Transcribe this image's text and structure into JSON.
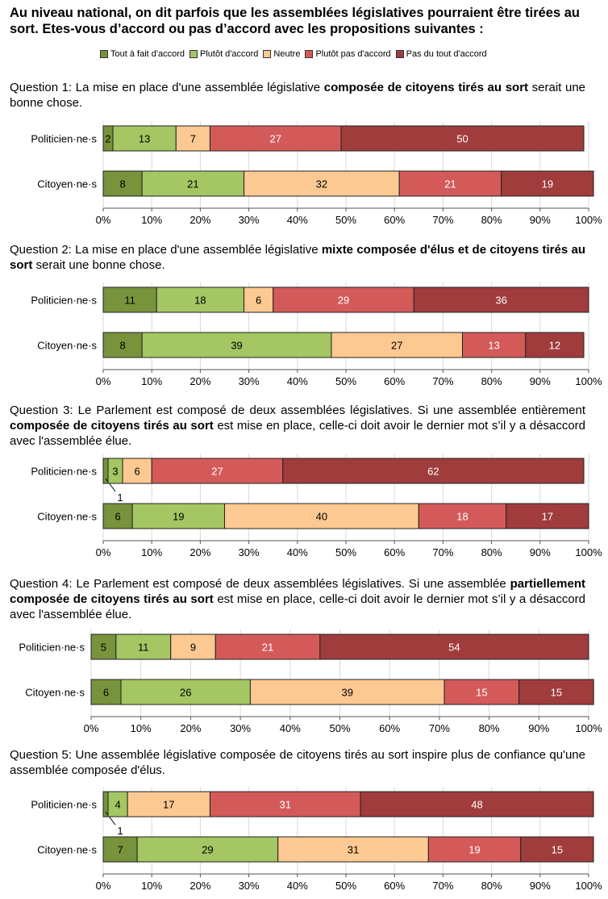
{
  "title": "Au niveau national, on dit parfois que les assemblées législatives pourraient être tirées au sort. Etes-vous d’accord ou pas d’accord avec les propositions suivantes :",
  "legend": [
    {
      "label": "Tout à fait d'accord",
      "color": "#77933c"
    },
    {
      "label": "Plutôt d'accord",
      "color": "#a4c663"
    },
    {
      "label": "Neutre",
      "color": "#fcc992"
    },
    {
      "label": "Plutôt pas d'accord",
      "color": "#d45a5a"
    },
    {
      "label": "Pas du tout d'accord",
      "color": "#a03c3c"
    }
  ],
  "questions": [
    {
      "pre": "Question 1: La mise en place d'une assemblée législative ",
      "bold": "composée de citoyens tirés au sort",
      "post": " serait une bonne chose."
    },
    {
      "pre": "Question 2: La mise en place d'une assemblée législative ",
      "bold": "mixte composée d'élus et de citoyens tirés au sort",
      "post": " serait une bonne chose."
    },
    {
      "pre": "Question 3: Le Parlement est composé de deux assemblées législatives. Si une assemblée entièrement ",
      "bold": "composée de citoyens tirés au sort",
      "post": " est mise en place, celle-ci doit avoir le dernier mot s’il y a désaccord avec l'assemblée élue."
    },
    {
      "pre": "Question 4: Le Parlement est composé de deux assemblées législatives. Si une assemblée ",
      "bold": "partiellement composée de citoyens tirés au sort",
      "post": " est mise en place, celle-ci doit avoir le dernier mot s’il y a désaccord avec l'assemblée élue."
    },
    {
      "pre": "Question 5: Une assemblée législative composée de citoyens tirés au sort inspire plus de confiance qu'une assemblée composée d'élus.",
      "bold": "",
      "post": ""
    }
  ],
  "chart_data": [
    {
      "type": "bar",
      "orientation": "horizontal",
      "stacked": true,
      "title": "Question 1",
      "categories": [
        "Politicien·ne·s",
        "Citoyen·ne·s"
      ],
      "series": [
        {
          "name": "Tout à fait d'accord",
          "values": [
            2,
            8
          ]
        },
        {
          "name": "Plutôt d'accord",
          "values": [
            13,
            21
          ]
        },
        {
          "name": "Neutre",
          "values": [
            7,
            32
          ]
        },
        {
          "name": "Plutôt pas d'accord",
          "values": [
            27,
            21
          ]
        },
        {
          "name": "Pas du tout d'accord",
          "values": [
            50,
            19
          ]
        }
      ],
      "xlim": [
        0,
        100
      ],
      "ticks": [
        "0%",
        "10%",
        "20%",
        "30%",
        "40%",
        "50%",
        "60%",
        "70%",
        "80%",
        "90%",
        "100%"
      ]
    },
    {
      "type": "bar",
      "orientation": "horizontal",
      "stacked": true,
      "title": "Question 2",
      "categories": [
        "Politicien·ne·s",
        "Citoyen·ne·s"
      ],
      "series": [
        {
          "name": "Tout à fait d'accord",
          "values": [
            11,
            8
          ]
        },
        {
          "name": "Plutôt d'accord",
          "values": [
            18,
            39
          ]
        },
        {
          "name": "Neutre",
          "values": [
            6,
            27
          ]
        },
        {
          "name": "Plutôt pas d'accord",
          "values": [
            29,
            13
          ]
        },
        {
          "name": "Pas du tout d'accord",
          "values": [
            36,
            12
          ]
        }
      ],
      "xlim": [
        0,
        100
      ],
      "ticks": [
        "0%",
        "10%",
        "20%",
        "30%",
        "40%",
        "50%",
        "60%",
        "70%",
        "80%",
        "90%",
        "100%"
      ]
    },
    {
      "type": "bar",
      "orientation": "horizontal",
      "stacked": true,
      "title": "Question 3",
      "categories": [
        "Politicien·ne·s",
        "Citoyen·ne·s"
      ],
      "series": [
        {
          "name": "Tout à fait d'accord",
          "values": [
            1,
            6
          ]
        },
        {
          "name": "Plutôt d'accord",
          "values": [
            3,
            19
          ]
        },
        {
          "name": "Neutre",
          "values": [
            6,
            40
          ]
        },
        {
          "name": "Plutôt pas d'accord",
          "values": [
            27,
            18
          ]
        },
        {
          "name": "Pas du tout d'accord",
          "values": [
            62,
            17
          ]
        }
      ],
      "xlim": [
        0,
        100
      ],
      "ticks": [
        "0%",
        "10%",
        "20%",
        "30%",
        "40%",
        "50%",
        "60%",
        "70%",
        "80%",
        "90%",
        "100%"
      ]
    },
    {
      "type": "bar",
      "orientation": "horizontal",
      "stacked": true,
      "title": "Question 4",
      "categories": [
        "Politicien·ne·s",
        "Citoyen·ne·s"
      ],
      "series": [
        {
          "name": "Tout à fait d'accord",
          "values": [
            5,
            6
          ]
        },
        {
          "name": "Plutôt d'accord",
          "values": [
            11,
            26
          ]
        },
        {
          "name": "Neutre",
          "values": [
            9,
            39
          ]
        },
        {
          "name": "Plutôt pas d'accord",
          "values": [
            21,
            15
          ]
        },
        {
          "name": "Pas du tout d'accord",
          "values": [
            54,
            15
          ]
        }
      ],
      "xlim": [
        0,
        100
      ],
      "ticks": [
        "0%",
        "10%",
        "20%",
        "30%",
        "40%",
        "50%",
        "60%",
        "70%",
        "80%",
        "90%",
        "100%"
      ]
    },
    {
      "type": "bar",
      "orientation": "horizontal",
      "stacked": true,
      "title": "Question 5",
      "categories": [
        "Politicien·ne·s",
        "Citoyen·ne·s"
      ],
      "series": [
        {
          "name": "Tout à fait d'accord",
          "values": [
            1,
            7
          ]
        },
        {
          "name": "Plutôt d'accord",
          "values": [
            4,
            29
          ]
        },
        {
          "name": "Neutre",
          "values": [
            17,
            31
          ]
        },
        {
          "name": "Plutôt pas d'accord",
          "values": [
            31,
            19
          ]
        },
        {
          "name": "Pas du tout d'accord",
          "values": [
            48,
            15
          ]
        }
      ],
      "xlim": [
        0,
        100
      ],
      "ticks": [
        "0%",
        "10%",
        "20%",
        "30%",
        "40%",
        "50%",
        "60%",
        "70%",
        "80%",
        "90%",
        "100%"
      ]
    }
  ]
}
